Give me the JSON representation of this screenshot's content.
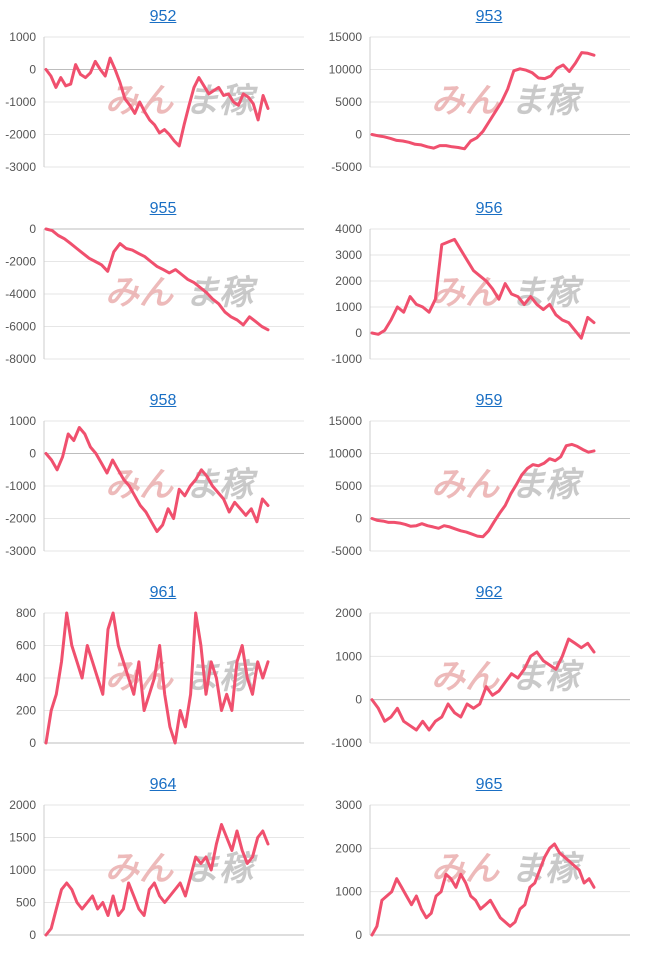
{
  "style": {
    "line_color": "#f0506e",
    "grid_color": "#e6e6e6",
    "link_color": "#1a6fc4"
  },
  "watermark": {
    "left": "みん",
    "right": "ま稼"
  },
  "chart_data": [
    {
      "type": "line",
      "title": "952",
      "ylim": [
        -3000,
        1000
      ],
      "yticks": [
        1000,
        0,
        -1000,
        -2000,
        -3000
      ],
      "values": [
        0,
        -200,
        -550,
        -250,
        -500,
        -450,
        150,
        -150,
        -250,
        -100,
        250,
        0,
        -200,
        350,
        0,
        -400,
        -900,
        -1100,
        -1350,
        -1000,
        -1300,
        -1550,
        -1700,
        -1950,
        -1850,
        -2000,
        -2200,
        -2350,
        -1700,
        -1100,
        -550,
        -250,
        -500,
        -750,
        -650,
        -550,
        -800,
        -750,
        -1000,
        -1100,
        -750,
        -850,
        -1050,
        -1550,
        -800,
        -1200
      ]
    },
    {
      "type": "line",
      "title": "953",
      "ylim": [
        -5000,
        15000
      ],
      "yticks": [
        15000,
        10000,
        5000,
        0,
        -5000
      ],
      "values": [
        0,
        -200,
        -350,
        -600,
        -900,
        -1000,
        -1200,
        -1500,
        -1600,
        -1900,
        -2100,
        -1700,
        -1700,
        -1900,
        -2000,
        -2200,
        -1000,
        -500,
        500,
        2000,
        3500,
        5000,
        7000,
        9800,
        10100,
        9900,
        9500,
        8700,
        8600,
        9000,
        10200,
        10700,
        9700,
        11000,
        12600,
        12500,
        12200
      ]
    },
    {
      "type": "line",
      "title": "955",
      "ylim": [
        -8000,
        0
      ],
      "yticks": [
        0,
        -2000,
        -4000,
        -6000,
        -8000
      ],
      "values": [
        0,
        -100,
        -400,
        -600,
        -900,
        -1200,
        -1500,
        -1800,
        -2000,
        -2200,
        -2600,
        -1400,
        -900,
        -1200,
        -1300,
        -1500,
        -1700,
        -2000,
        -2300,
        -2500,
        -2700,
        -2500,
        -2800,
        -3100,
        -3300,
        -3600,
        -3900,
        -4300,
        -4600,
        -5100,
        -5400,
        -5600,
        -5900,
        -5400,
        -5700,
        -6000,
        -6200
      ]
    },
    {
      "type": "line",
      "title": "956",
      "ylim": [
        -1000,
        4000
      ],
      "yticks": [
        4000,
        3000,
        2000,
        1000,
        0,
        -1000
      ],
      "values": [
        0,
        -50,
        100,
        500,
        1000,
        800,
        1400,
        1100,
        1000,
        800,
        1300,
        3400,
        3500,
        3600,
        3200,
        2800,
        2400,
        2200,
        2000,
        1700,
        1300,
        1900,
        1500,
        1400,
        1100,
        1400,
        1100,
        900,
        1100,
        700,
        500,
        400,
        100,
        -200,
        600,
        400
      ]
    },
    {
      "type": "line",
      "title": "958",
      "ylim": [
        -3000,
        1000
      ],
      "yticks": [
        1000,
        0,
        -1000,
        -2000,
        -3000
      ],
      "values": [
        0,
        -200,
        -500,
        -100,
        600,
        400,
        800,
        600,
        200,
        0,
        -300,
        -600,
        -200,
        -500,
        -800,
        -1000,
        -1300,
        -1600,
        -1800,
        -2100,
        -2400,
        -2200,
        -1700,
        -2000,
        -1100,
        -1300,
        -1000,
        -800,
        -500,
        -700,
        -1000,
        -1200,
        -1400,
        -1800,
        -1500,
        -1700,
        -1900,
        -1700,
        -2100,
        -1400,
        -1600
      ]
    },
    {
      "type": "line",
      "title": "959",
      "ylim": [
        -5000,
        15000
      ],
      "yticks": [
        15000,
        10000,
        5000,
        0,
        -5000
      ],
      "values": [
        0,
        -300,
        -400,
        -600,
        -600,
        -700,
        -900,
        -1200,
        -1100,
        -800,
        -1100,
        -1300,
        -1500,
        -1100,
        -1300,
        -1600,
        -1900,
        -2100,
        -2400,
        -2700,
        -2800,
        -1900,
        -500,
        800,
        2000,
        3800,
        5200,
        6700,
        7700,
        8300,
        8100,
        8500,
        9200,
        8900,
        9500,
        11200,
        11400,
        11100,
        10600,
        10200,
        10400
      ]
    },
    {
      "type": "line",
      "title": "961",
      "ylim": [
        0,
        800
      ],
      "yticks": [
        800,
        600,
        400,
        200,
        0
      ],
      "values": [
        0,
        200,
        300,
        500,
        800,
        600,
        500,
        400,
        600,
        500,
        400,
        300,
        700,
        800,
        600,
        500,
        400,
        300,
        500,
        200,
        300,
        400,
        600,
        300,
        100,
        0,
        200,
        100,
        300,
        800,
        600,
        300,
        500,
        400,
        200,
        300,
        200,
        500,
        600,
        400,
        300,
        500,
        400,
        500
      ]
    },
    {
      "type": "line",
      "title": "962",
      "ylim": [
        -1000,
        2000
      ],
      "yticks": [
        2000,
        1000,
        0,
        -1000
      ],
      "values": [
        0,
        -200,
        -500,
        -400,
        -200,
        -500,
        -600,
        -700,
        -500,
        -700,
        -500,
        -400,
        -100,
        -300,
        -400,
        -100,
        -200,
        -100,
        300,
        100,
        200,
        400,
        600,
        500,
        700,
        1000,
        1100,
        900,
        800,
        700,
        1000,
        1400,
        1300,
        1200,
        1300,
        1100
      ]
    },
    {
      "type": "line",
      "title": "964",
      "ylim": [
        0,
        2000
      ],
      "yticks": [
        2000,
        1500,
        1000,
        500,
        0
      ],
      "values": [
        0,
        100,
        400,
        700,
        800,
        700,
        500,
        400,
        500,
        600,
        400,
        500,
        300,
        600,
        300,
        400,
        800,
        600,
        400,
        300,
        700,
        800,
        600,
        500,
        600,
        700,
        800,
        600,
        900,
        1200,
        1100,
        1200,
        1000,
        1400,
        1700,
        1500,
        1300,
        1600,
        1300,
        1100,
        1200,
        1500,
        1600,
        1400
      ]
    },
    {
      "type": "line",
      "title": "965",
      "ylim": [
        0,
        3000
      ],
      "yticks": [
        3000,
        2000,
        1000,
        0
      ],
      "values": [
        0,
        200,
        800,
        900,
        1000,
        1300,
        1100,
        900,
        700,
        900,
        600,
        400,
        500,
        900,
        1000,
        1400,
        1300,
        1100,
        1400,
        1200,
        900,
        800,
        600,
        700,
        800,
        600,
        400,
        300,
        200,
        300,
        600,
        700,
        1100,
        1200,
        1500,
        1800,
        2000,
        2100,
        1900,
        1800,
        1700,
        1600,
        1500,
        1200,
        1300,
        1100
      ]
    }
  ]
}
